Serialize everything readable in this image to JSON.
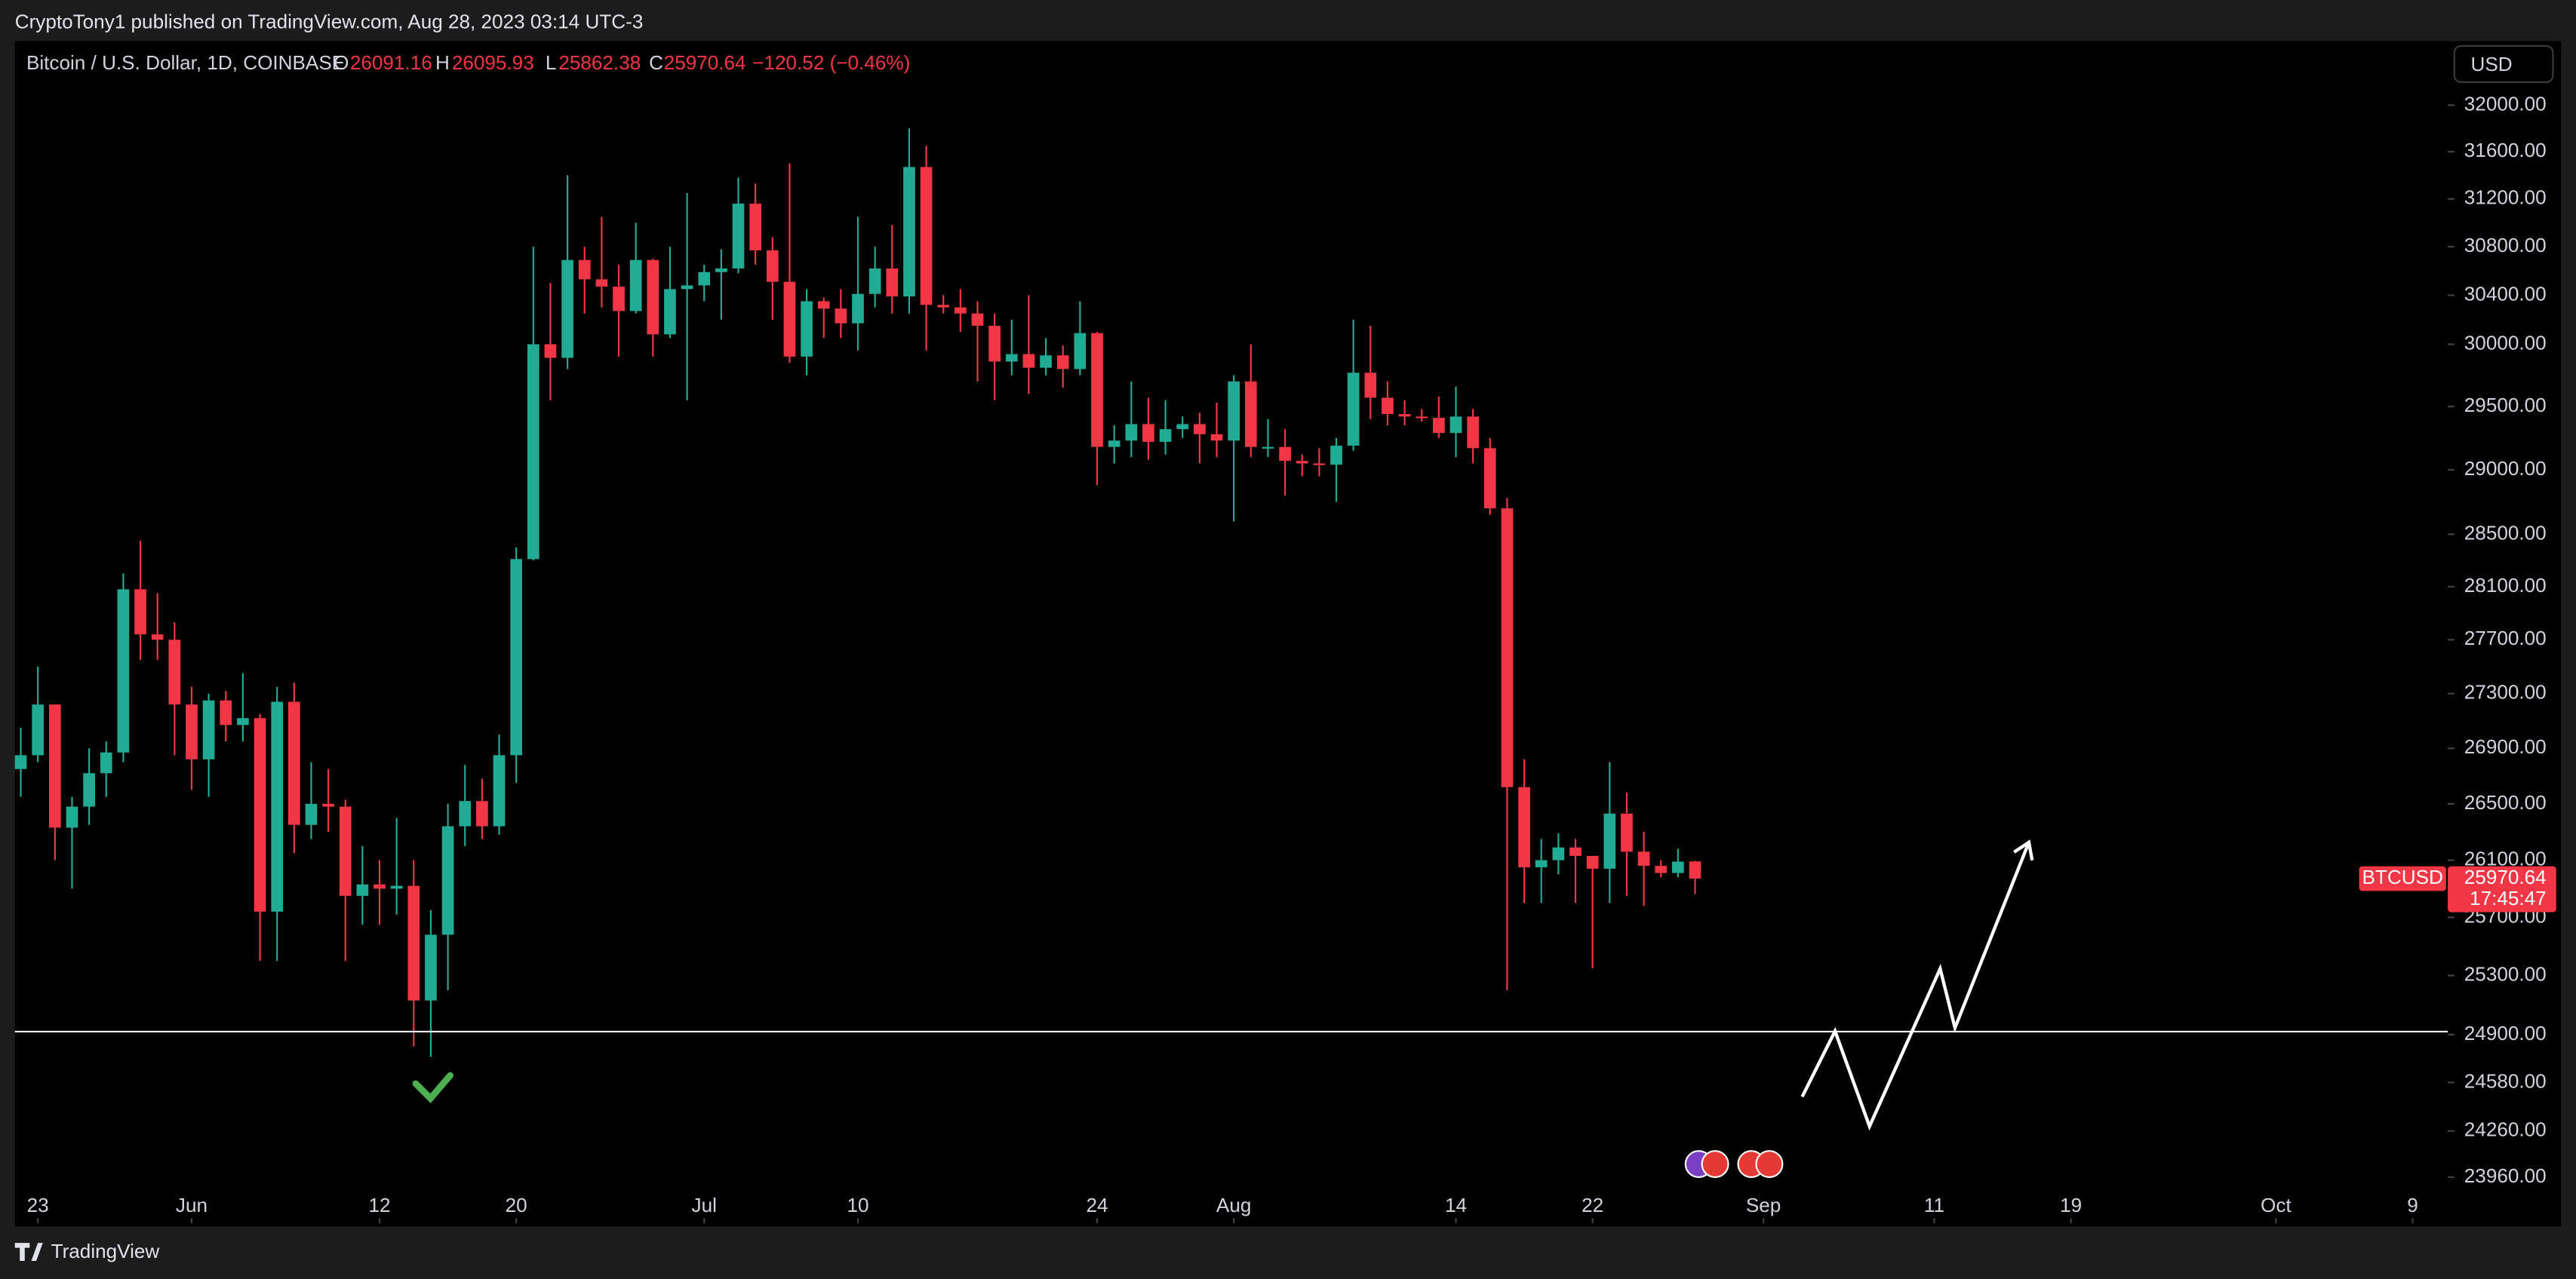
{
  "header": {
    "publisher": "CryptoTony1 published on TradingView.com, Aug 28, 2023 03:14 UTC-3"
  },
  "footer": {
    "brand": "TradingView"
  },
  "currency": "USD",
  "chart_data": {
    "type": "candlestick",
    "symbol": "Bitcoin / U.S. Dollar, 1D, COINBASE",
    "legend_labels": {
      "open": "O",
      "high": "H",
      "low": "L",
      "close": "C"
    },
    "change": "−120.52 (−0.46%)",
    "ticker": "BTCUSD",
    "countdown": "17:45:47",
    "up_color": "#22ab94",
    "down_color": "#f23645",
    "x": [
      "2023-05-22",
      "2023-05-23",
      "2023-05-24",
      "2023-05-25",
      "2023-05-26",
      "2023-05-27",
      "2023-05-28",
      "2023-05-29",
      "2023-05-30",
      "2023-05-31",
      "2023-06-01",
      "2023-06-02",
      "2023-06-03",
      "2023-06-04",
      "2023-06-05",
      "2023-06-06",
      "2023-06-07",
      "2023-06-08",
      "2023-06-09",
      "2023-06-10",
      "2023-06-11",
      "2023-06-12",
      "2023-06-13",
      "2023-06-14",
      "2023-06-15",
      "2023-06-16",
      "2023-06-17",
      "2023-06-18",
      "2023-06-19",
      "2023-06-20",
      "2023-06-21",
      "2023-06-22",
      "2023-06-23",
      "2023-06-24",
      "2023-06-25",
      "2023-06-26",
      "2023-06-27",
      "2023-06-28",
      "2023-06-29",
      "2023-06-30",
      "2023-07-01",
      "2023-07-02",
      "2023-07-03",
      "2023-07-04",
      "2023-07-05",
      "2023-07-06",
      "2023-07-07",
      "2023-07-08",
      "2023-07-09",
      "2023-07-10",
      "2023-07-11",
      "2023-07-12",
      "2023-07-13",
      "2023-07-14",
      "2023-07-15",
      "2023-07-16",
      "2023-07-17",
      "2023-07-18",
      "2023-07-19",
      "2023-07-20",
      "2023-07-21",
      "2023-07-22",
      "2023-07-23",
      "2023-07-24",
      "2023-07-25",
      "2023-07-26",
      "2023-07-27",
      "2023-07-28",
      "2023-07-29",
      "2023-07-30",
      "2023-07-31",
      "2023-08-01",
      "2023-08-02",
      "2023-08-03",
      "2023-08-04",
      "2023-08-05",
      "2023-08-06",
      "2023-08-07",
      "2023-08-08",
      "2023-08-09",
      "2023-08-10",
      "2023-08-11",
      "2023-08-12",
      "2023-08-13",
      "2023-08-14",
      "2023-08-15",
      "2023-08-16",
      "2023-08-17",
      "2023-08-18",
      "2023-08-19",
      "2023-08-20",
      "2023-08-21",
      "2023-08-22",
      "2023-08-23",
      "2023-08-24",
      "2023-08-25",
      "2023-08-26",
      "2023-08-27",
      "2023-08-28"
    ],
    "open": [
      26750,
      26850,
      27220,
      26330,
      26480,
      26720,
      26870,
      28080,
      27740,
      27700,
      27220,
      26820,
      27250,
      27070,
      27120,
      25740,
      27240,
      26350,
      26500,
      26480,
      25850,
      25930,
      25900,
      25920,
      25130,
      25580,
      26340,
      26520,
      26340,
      26850,
      28310,
      30000,
      29890,
      30690,
      30530,
      30470,
      30270,
      30690,
      30080,
      30450,
      30480,
      30590,
      30620,
      31160,
      30770,
      30510,
      29900,
      30350,
      30290,
      30170,
      30410,
      30620,
      30390,
      31470,
      30320,
      30300,
      30250,
      30150,
      29860,
      29920,
      29810,
      29910,
      29800,
      30090,
      29180,
      29230,
      29360,
      29220,
      29320,
      29360,
      29280,
      29230,
      29700,
      29180,
      29180,
      29070,
      29050,
      29040,
      29190,
      29770,
      29570,
      29440,
      29420,
      29410,
      29290,
      29420,
      29170,
      28700,
      26620,
      26050,
      26100,
      26190,
      26130,
      26040,
      26430,
      26160,
      26060,
      26010,
      26091.16
    ],
    "high": [
      27050,
      27500,
      27220,
      26550,
      26900,
      26950,
      28200,
      28450,
      28050,
      27830,
      27350,
      27300,
      27320,
      27450,
      27150,
      27350,
      27380,
      26800,
      26750,
      26530,
      26200,
      26100,
      26400,
      26100,
      25750,
      26500,
      26780,
      26680,
      27000,
      28400,
      30800,
      30500,
      31400,
      30800,
      31050,
      30650,
      31000,
      30700,
      30800,
      31250,
      30650,
      30780,
      31380,
      31330,
      30880,
      31500,
      30450,
      30380,
      30450,
      31050,
      30800,
      30980,
      31800,
      31650,
      30400,
      30450,
      30350,
      30250,
      30200,
      30400,
      30050,
      29990,
      30350,
      30100,
      29350,
      29700,
      29570,
      29550,
      29420,
      29450,
      29530,
      29750,
      30000,
      29400,
      29320,
      29120,
      29170,
      29250,
      30200,
      30150,
      29700,
      29550,
      29480,
      29580,
      29660,
      29480,
      29250,
      28780,
      26820,
      26250,
      26290,
      26250,
      26130,
      26800,
      26580,
      26300,
      26100,
      26180,
      26095.93
    ],
    "low": [
      26550,
      26800,
      26100,
      25900,
      26350,
      26550,
      26800,
      27550,
      27550,
      26850,
      26600,
      26550,
      26950,
      26950,
      25400,
      25400,
      26150,
      26250,
      26300,
      25400,
      25650,
      25650,
      25720,
      24820,
      24750,
      25200,
      26200,
      26250,
      26280,
      26650,
      28300,
      29550,
      29800,
      30250,
      30300,
      29900,
      30250,
      29900,
      30050,
      29550,
      30350,
      30200,
      30580,
      30650,
      30200,
      29850,
      29750,
      30050,
      30050,
      29950,
      30300,
      30250,
      30250,
      29950,
      30250,
      30100,
      29700,
      29550,
      29750,
      29600,
      29750,
      29650,
      29750,
      28880,
      29050,
      29100,
      29080,
      29120,
      29250,
      29050,
      29100,
      28600,
      29100,
      29100,
      28800,
      28950,
      28950,
      28750,
      29150,
      29400,
      29350,
      29350,
      29380,
      29250,
      29100,
      29050,
      28650,
      25200,
      25800,
      25800,
      26000,
      25800,
      25350,
      25800,
      25850,
      25780,
      25980,
      25980,
      25862.38
    ],
    "close": [
      26850,
      27220,
      26330,
      26480,
      26720,
      26870,
      28080,
      27740,
      27700,
      27220,
      26820,
      27250,
      27070,
      27120,
      25740,
      27240,
      26350,
      26500,
      26480,
      25850,
      25930,
      25900,
      25920,
      25130,
      25580,
      26340,
      26520,
      26340,
      26850,
      28310,
      30000,
      29890,
      30690,
      30530,
      30470,
      30270,
      30690,
      30080,
      30450,
      30480,
      30590,
      30620,
      31160,
      30770,
      30510,
      29900,
      30350,
      30290,
      30170,
      30410,
      30620,
      30390,
      31470,
      30320,
      30300,
      30250,
      30150,
      29860,
      29920,
      29810,
      29910,
      29800,
      30090,
      29180,
      29230,
      29360,
      29220,
      29320,
      29360,
      29280,
      29230,
      29700,
      29180,
      29180,
      29070,
      29050,
      29040,
      29190,
      29770,
      29570,
      29440,
      29420,
      29410,
      29290,
      29420,
      29170,
      28700,
      26620,
      26050,
      26100,
      26190,
      26130,
      26040,
      26430,
      26160,
      26060,
      26010,
      26090,
      25970.64
    ],
    "ylim": [
      23664,
      32515
    ],
    "log_scale": true,
    "grid": false,
    "yticks": [
      {
        "value": 32000,
        "label": "32000.00"
      },
      {
        "value": 31600,
        "label": "31600.00"
      },
      {
        "value": 31200,
        "label": "31200.00"
      },
      {
        "value": 30800,
        "label": "30800.00"
      },
      {
        "value": 30400,
        "label": "30400.00"
      },
      {
        "value": 30000,
        "label": "30000.00"
      },
      {
        "value": 29500,
        "label": "29500.00"
      },
      {
        "value": 29000,
        "label": "29000.00"
      },
      {
        "value": 28500,
        "label": "28500.00"
      },
      {
        "value": 28100,
        "label": "28100.00"
      },
      {
        "value": 27700,
        "label": "27700.00"
      },
      {
        "value": 27300,
        "label": "27300.00"
      },
      {
        "value": 26900,
        "label": "26900.00"
      },
      {
        "value": 26500,
        "label": "26500.00"
      },
      {
        "value": 26100,
        "label": "26100.00"
      },
      {
        "value": 25700,
        "label": "25700.00"
      },
      {
        "value": 25300,
        "label": "25300.00"
      },
      {
        "value": 24900,
        "label": "24900.00"
      },
      {
        "value": 24580,
        "label": "24580.00"
      },
      {
        "value": 24260,
        "label": "24260.00"
      },
      {
        "value": 23960,
        "label": "23960.00"
      }
    ],
    "xticks": [
      {
        "value": "2023-05-23",
        "label": "23"
      },
      {
        "value": "2023-06-01",
        "label": "Jun"
      },
      {
        "value": "2023-06-12",
        "label": "12"
      },
      {
        "value": "2023-06-20",
        "label": "20"
      },
      {
        "value": "2023-07-01",
        "label": "Jul"
      },
      {
        "value": "2023-07-10",
        "label": "10"
      },
      {
        "value": "2023-07-24",
        "label": "24"
      },
      {
        "value": "2023-08-01",
        "label": "Aug"
      },
      {
        "value": "2023-08-14",
        "label": "14"
      },
      {
        "value": "2023-08-22",
        "label": "22"
      },
      {
        "value": "2023-09-01",
        "label": "Sep"
      },
      {
        "value": "2023-09-11",
        "label": "11"
      },
      {
        "value": "2023-09-19",
        "label": "19"
      },
      {
        "value": "2023-10-01",
        "label": "Oct"
      },
      {
        "value": "2023-10-09",
        "label": "9"
      }
    ],
    "hline": 24920
  }
}
